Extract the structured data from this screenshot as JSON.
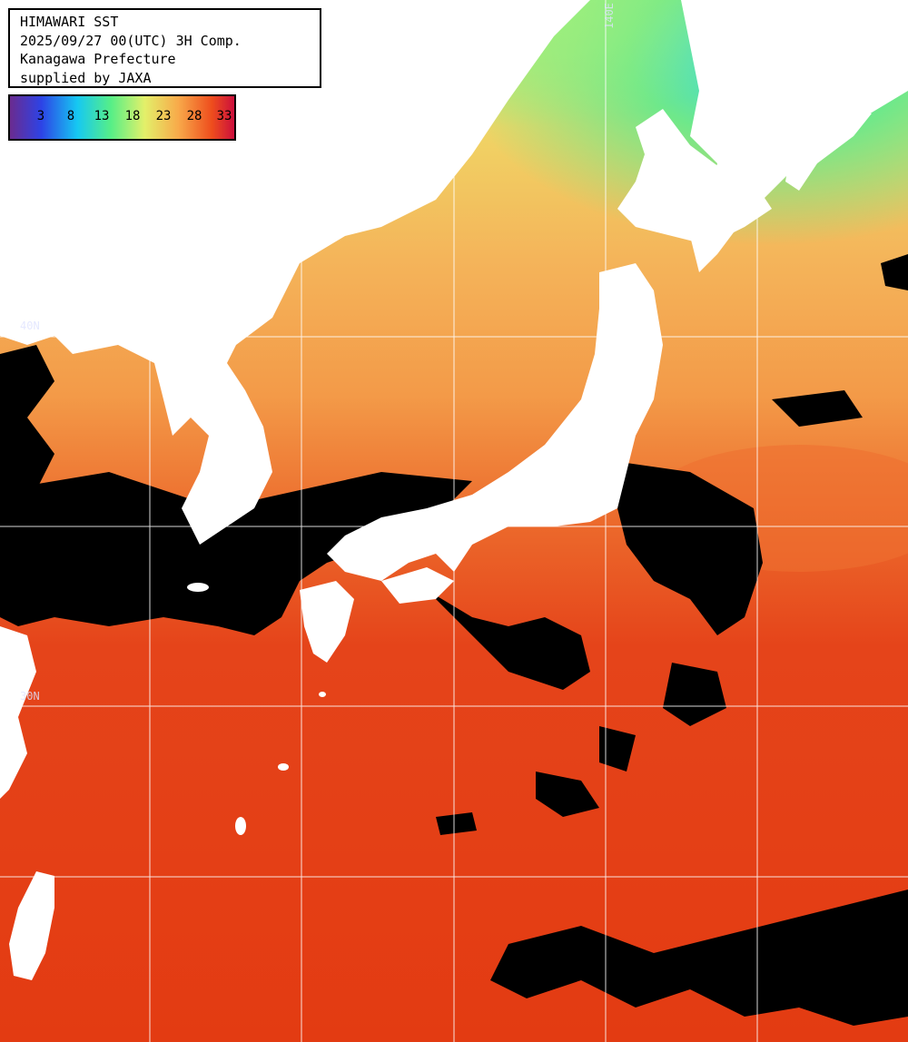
{
  "header": {
    "title": "HIMAWARI SST",
    "datetime": "2025/09/27 00(UTC) 3H Comp.",
    "region": "Kanagawa Prefecture",
    "credit": "supplied by JAXA"
  },
  "legend": {
    "labels": [
      "3",
      "8",
      "13",
      "18",
      "23",
      "28",
      "33"
    ],
    "colors": [
      "#6a2b8f",
      "#2d43e6",
      "#16c8f2",
      "#56ef87",
      "#e3f06a",
      "#f8aa4a",
      "#ee4d1d",
      "#cc0f3c"
    ]
  },
  "grid_labels": {
    "lon": "140E",
    "lat_upper": "40N",
    "lat_lower": "30N"
  },
  "colors": {
    "land": "#ffffff",
    "cloud": "#000000",
    "sea_warm": "#e53c14",
    "sea_mid": "#f2a04a",
    "sea_cool": "#7fe884",
    "grid": "#ffffff"
  }
}
